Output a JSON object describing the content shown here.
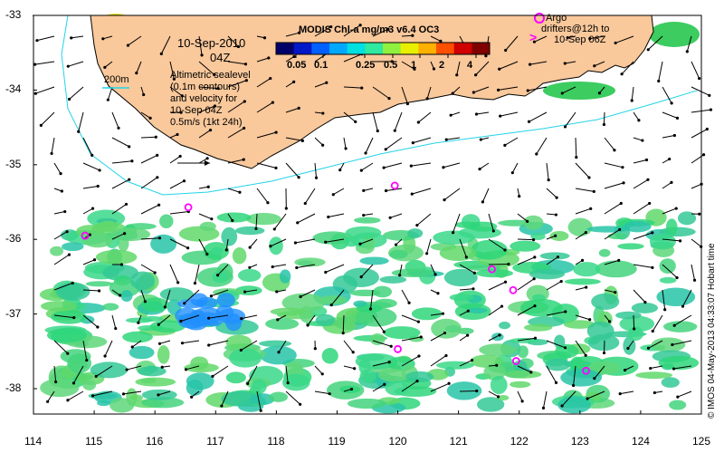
{
  "colorbar": {
    "title": "MODIS Chl-a mg/m3 v6.4 OC3",
    "ticks": [
      "0.05",
      "0.1",
      "0.25",
      "0.5",
      "1",
      "2",
      "4"
    ],
    "colors": [
      "#00006a",
      "#0018c8",
      "#0060ff",
      "#00a8ff",
      "#00e0e0",
      "#30e8a0",
      "#90f040",
      "#e8f000",
      "#ffb000",
      "#ff5000",
      "#d00000",
      "#800000"
    ]
  },
  "date_label": "10-Sep-2010",
  "time_label": "04Z",
  "contour_legend": "200m",
  "altimetry_note": [
    "Altimetric sealevel",
    "(0.1m contours)",
    "and velocity for",
    "10-Sep 04Z",
    "0.5m/s (1kt 24h)"
  ],
  "argo_legend": [
    "Argo",
    "drifters@12h to",
    "10-Sep 06Z"
  ],
  "credit": "© IMOS 04-May-2013 04:33:07 Hobart time",
  "axes": {
    "x_ticks": [
      "114",
      "115",
      "116",
      "117",
      "118",
      "119",
      "120",
      "121",
      "122",
      "123",
      "124",
      "125"
    ],
    "y_ticks": [
      "-33",
      "-34",
      "-35",
      "-36",
      "-37",
      "-38"
    ]
  },
  "colors": {
    "land": "#f9c89b",
    "land_edge": "#000000",
    "argo": "#ff00ff",
    "isobath": "#22d4e8"
  },
  "argo_floats": [
    {
      "lon": 116.55,
      "lat": -35.57
    },
    {
      "lon": 114.85,
      "lat": -35.95
    },
    {
      "lon": 119.95,
      "lat": -35.28
    },
    {
      "lon": 121.55,
      "lat": -36.4
    },
    {
      "lon": 121.9,
      "lat": -36.68
    },
    {
      "lon": 120.0,
      "lat": -37.47
    },
    {
      "lon": 121.95,
      "lat": -37.63
    },
    {
      "lon": 123.1,
      "lat": -37.76
    }
  ]
}
